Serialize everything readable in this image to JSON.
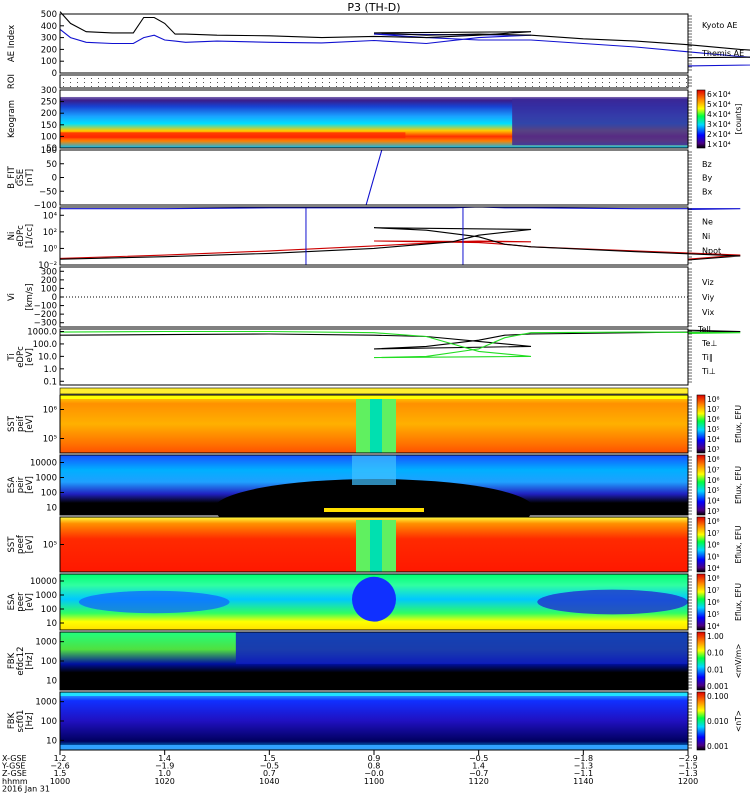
{
  "title": "P3 (TH-D)",
  "colors": {
    "blue": "#1010d0",
    "black": "#000000",
    "red": "#cc0000",
    "green": "#00a000",
    "lime": "#22dd22"
  },
  "chart_data": [
    {
      "id": "ae",
      "type": "line",
      "ylabel": [
        "AE Index"
      ],
      "ticks": [
        "500",
        "400",
        "300",
        "200",
        "100",
        "0"
      ],
      "tick_values": [
        500,
        400,
        300,
        200,
        100,
        0
      ],
      "ylim": [
        0,
        500
      ],
      "legend": [
        {
          "name": "Kyoto AE",
          "color": "#1010d0"
        },
        {
          "name": "Themis AE",
          "color": "#000000"
        }
      ],
      "x": [
        1000,
        1002,
        1005,
        1010,
        1014,
        1016,
        1018,
        1020,
        1022,
        1024,
        1030,
        1040,
        1050,
        1060,
        1070,
        1080,
        1090,
        1100,
        1110,
        1120,
        1130,
        1140,
        1150,
        1160,
        1170,
        1180,
        1190,
        1200
      ],
      "series": [
        {
          "name": "Kyoto AE",
          "color": "#1010d0",
          "values": [
            370,
            300,
            260,
            250,
            250,
            300,
            320,
            280,
            270,
            260,
            270,
            260,
            255,
            275,
            250,
            300,
            320,
            330,
            300,
            280,
            280,
            250,
            220,
            180,
            140,
            110,
            80,
            60
          ]
        },
        {
          "name": "Themis AE",
          "color": "#000000",
          "values": [
            520,
            420,
            350,
            340,
            340,
            470,
            470,
            420,
            330,
            330,
            320,
            315,
            300,
            310,
            300,
            320,
            350,
            340,
            320,
            330,
            320,
            290,
            270,
            240,
            200,
            170,
            140,
            130
          ]
        }
      ]
    },
    {
      "id": "roi",
      "type": "dots",
      "ylabel": [
        "ROI"
      ],
      "ticks": []
    },
    {
      "id": "keogram",
      "type": "heatmap",
      "ylabel": [
        "Keogram"
      ],
      "ticks": [
        "300",
        "250",
        "200",
        "150",
        "100",
        "50"
      ],
      "tick_values": [
        300,
        250,
        200,
        150,
        100,
        50
      ],
      "ylim": [
        50,
        300
      ],
      "colorbar": {
        "ticks": [
          "6×10⁴",
          "5×10⁴",
          "4×10⁴",
          "3×10⁴",
          "2×10⁴",
          "1×10⁴"
        ],
        "label": "[counts]"
      }
    },
    {
      "id": "bfield",
      "type": "line",
      "ylabel": [
        "B_FIT",
        "GSE",
        "[nT]"
      ],
      "ticks": [
        "100",
        "50",
        "0",
        "−50",
        "−100"
      ],
      "tick_values": [
        100,
        50,
        0,
        -50,
        -100
      ],
      "ylim": [
        -100,
        100
      ],
      "legend": [
        {
          "name": "Bz",
          "color": "#cc0000"
        },
        {
          "name": "By",
          "color": "#00a000"
        },
        {
          "name": "Bx",
          "color": "#1010d0"
        }
      ],
      "x": [
        1058.5,
        1061.5
      ],
      "series": [
        {
          "name": "Bx",
          "color": "#1010d0",
          "values": [
            -100,
            100
          ]
        }
      ]
    },
    {
      "id": "density",
      "type": "line",
      "ylabel": [
        "Ni",
        "eDPc",
        "[1/cc]"
      ],
      "ticks": [
        "10⁴",
        "10²",
        "10⁰",
        "10⁻²"
      ],
      "tick_values": [
        4,
        2,
        0,
        -2
      ],
      "ylim": [
        -2,
        5
      ],
      "legend": [
        {
          "name": "Ne",
          "color": "#cc0000"
        },
        {
          "name": "Ni",
          "color": "#000000"
        },
        {
          "name": "Npot",
          "color": "#1010d0"
        }
      ],
      "x": [
        1000,
        1020,
        1040,
        1060,
        1075,
        1080,
        1090,
        1100,
        1110,
        1120,
        1125,
        1130,
        1150,
        1170,
        1200
      ],
      "series": [
        {
          "name": "Ne",
          "color": "#cc0000",
          "values": [
            -1.2,
            -0.8,
            -0.3,
            0.3,
            0.8,
            0.9,
            0.8,
            0.9,
            0.8,
            0.7,
            0.5,
            0.2,
            -0.3,
            -0.8,
            -1.3
          ]
        },
        {
          "name": "Ni",
          "color": "#000000",
          "values": [
            -1.3,
            -1.0,
            -0.6,
            0.0,
            0.8,
            1.6,
            2.3,
            2.5,
            2.2,
            1.4,
            0.5,
            0.2,
            -0.4,
            -0.9,
            -1.4
          ]
        },
        {
          "name": "Npot",
          "color": "#1010d0",
          "values": [
            4.8,
            4.8,
            4.9,
            4.9,
            4.9,
            5.0,
            5.0,
            5.0,
            5.0,
            5.0,
            4.9,
            4.9,
            4.8,
            4.8,
            4.7
          ]
        }
      ]
    },
    {
      "id": "velocity",
      "type": "line",
      "ylabel": [
        "Vi",
        "",
        "[km/s]"
      ],
      "ticks": [
        "300",
        "200",
        "100",
        "0",
        "−100",
        "−200",
        "−300"
      ],
      "tick_values": [
        300,
        200,
        100,
        0,
        -100,
        -200,
        -300
      ],
      "ylim": [
        -350,
        350
      ],
      "legend": [
        {
          "name": "Viz",
          "color": "#cc0000"
        },
        {
          "name": "Viy",
          "color": "#00a000"
        },
        {
          "name": "Vix",
          "color": "#1010d0"
        }
      ],
      "series": []
    },
    {
      "id": "temperature",
      "type": "line",
      "ylabel": [
        "Ti",
        "eDPc",
        "[eV]"
      ],
      "ticks": [
        "1000.0",
        "100.0",
        "10.0",
        "1.0",
        "0.1"
      ],
      "tick_values": [
        3,
        2,
        1,
        0,
        -1
      ],
      "ylim": [
        -1.3,
        3.2
      ],
      "legend_top": "Tell",
      "legend": [
        {
          "name": "Te⊥",
          "color": "#cc0000"
        },
        {
          "name": "Ti∥",
          "color": "#00a000"
        },
        {
          "name": "Ti⊥",
          "color": "#1010d0"
        }
      ],
      "x": [
        1000,
        1020,
        1040,
        1060,
        1070,
        1080,
        1090,
        1100,
        1110,
        1120,
        1125,
        1130,
        1150,
        1170,
        1200
      ],
      "series": [
        {
          "name": "Tell",
          "color": "#000000",
          "values": [
            2.7,
            2.75,
            2.8,
            2.7,
            2.6,
            2.2,
            1.8,
            1.6,
            1.8,
            2.3,
            2.7,
            2.8,
            2.9,
            3.0,
            3.1
          ]
        },
        {
          "name": "Ti∥",
          "color": "#22dd22",
          "values": [
            2.95,
            3.0,
            3.0,
            2.9,
            2.6,
            1.4,
            1.0,
            0.9,
            1.0,
            1.6,
            2.5,
            2.9,
            2.95,
            2.9,
            2.85
          ]
        }
      ]
    },
    {
      "id": "sst1",
      "type": "heatmap",
      "ylabel": [
        "SST",
        "peif",
        "[eV]"
      ],
      "ticks": [
        "10⁶",
        "10⁵"
      ],
      "tick_values": [
        6,
        5
      ],
      "colorbar": {
        "ticks": [
          "10⁸",
          "10⁷",
          "10⁶",
          "10⁵",
          "10⁴",
          "10³"
        ],
        "label": "Eflux, EFU"
      }
    },
    {
      "id": "esa1",
      "type": "heatmap",
      "ylabel": [
        "ESA",
        "peir",
        "[eV]"
      ],
      "ticks": [
        "10000",
        "1000",
        "100",
        "10"
      ],
      "tick_values": [
        4,
        3,
        2,
        1
      ],
      "colorbar": {
        "ticks": [
          "10⁸",
          "10⁷",
          "10⁶",
          "10⁵",
          "10⁴",
          "10³"
        ],
        "label": "Eflux, EFU"
      }
    },
    {
      "id": "sst2",
      "type": "heatmap",
      "ylabel": [
        "SST",
        "peef",
        "[eV]"
      ],
      "ticks": [
        "10⁵"
      ],
      "tick_values": [
        5
      ],
      "colorbar": {
        "ticks": [
          "10⁸",
          "10⁷",
          "10⁶",
          "10⁵",
          "10⁴"
        ],
        "label": "Eflux, EFU"
      }
    },
    {
      "id": "esa2",
      "type": "heatmap",
      "ylabel": [
        "ESA",
        "peer",
        "[eV]"
      ],
      "ticks": [
        "10000",
        "1000",
        "100",
        "10"
      ],
      "tick_values": [
        4,
        3,
        2,
        1
      ],
      "colorbar": {
        "ticks": [
          "10⁸",
          "10⁷",
          "10⁶",
          "10⁵",
          "10⁴"
        ],
        "label": "Eflux, EFU"
      }
    },
    {
      "id": "fbk1",
      "type": "heatmap",
      "ylabel": [
        "FBK",
        "efdc12",
        "[Hz]"
      ],
      "ticks": [
        "1000",
        "100",
        "10"
      ],
      "tick_values": [
        3,
        2,
        1
      ],
      "colorbar": {
        "ticks": [
          "1.00",
          "0.10",
          "0.01",
          "0.001"
        ],
        "label": "<mV/m>"
      }
    },
    {
      "id": "fbk2",
      "type": "heatmap",
      "ylabel": [
        "FBK",
        "scf01",
        "[Hz]"
      ],
      "ticks": [
        "1000",
        "100",
        "10"
      ],
      "tick_values": [
        3,
        2,
        1
      ],
      "colorbar": {
        "ticks": [
          "0.100",
          "0.010",
          "0.001"
        ],
        "label": "<nT>"
      }
    }
  ],
  "xaxis": {
    "row_labels": [
      "X-GSE",
      "Y-GSE",
      "Z-GSE",
      "hhmm",
      "2016 Jan 31"
    ],
    "columns": [
      {
        "vals": [
          "1.2",
          "−2.6",
          "1.5",
          "1000"
        ]
      },
      {
        "vals": [
          "1.4",
          "−1.9",
          "1.0",
          "1020"
        ]
      },
      {
        "vals": [
          "1.5",
          "−0.5",
          "0.7",
          "1040"
        ]
      },
      {
        "vals": [
          "0.9",
          "0.8",
          "−0.0",
          "1100"
        ]
      },
      {
        "vals": [
          "−0.5",
          "1.4",
          "−0.7",
          "1120"
        ]
      },
      {
        "vals": [
          "−1.8",
          "−1.3",
          "−1.1",
          "1140"
        ]
      },
      {
        "vals": [
          "−2.9",
          "−1.5",
          "−1.3",
          "1200"
        ]
      }
    ],
    "times": [
      1000,
      1020,
      1040,
      1100,
      1120,
      1140,
      1200
    ]
  }
}
